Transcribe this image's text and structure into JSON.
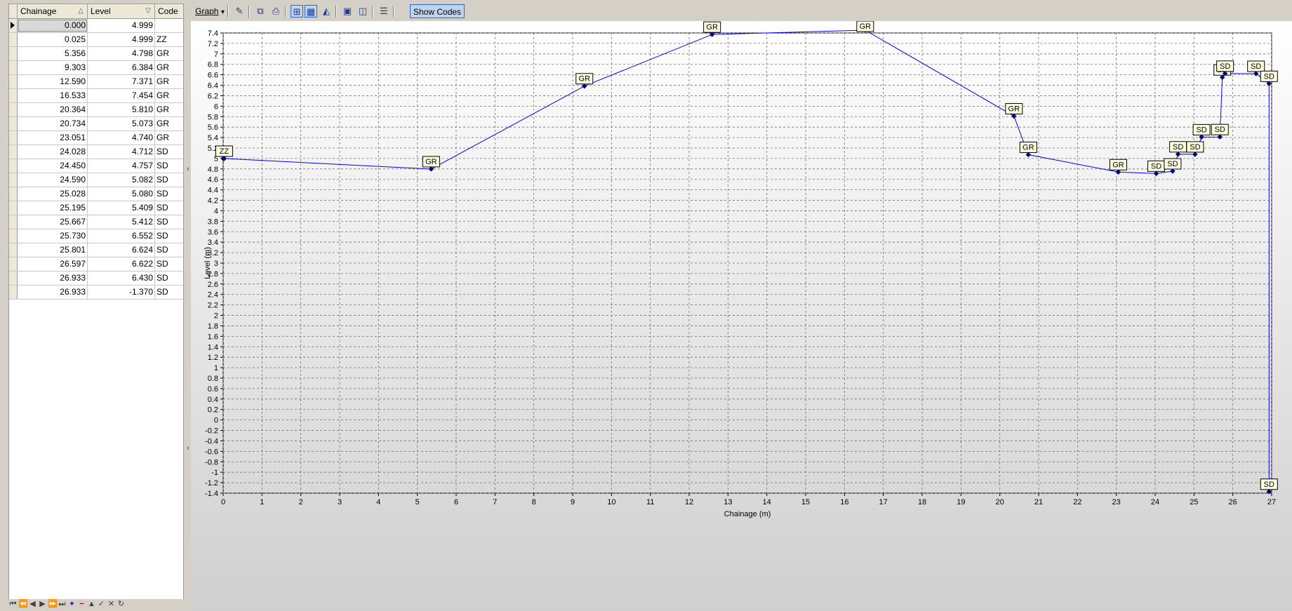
{
  "grid": {
    "columns": [
      {
        "label": "Chainage",
        "sort_icon": "sort-ascending-icon",
        "sort_glyph": "△"
      },
      {
        "label": "Level",
        "sort_icon": "filter-icon",
        "sort_glyph": "▽"
      },
      {
        "label": "Code"
      }
    ],
    "rows": [
      {
        "chainage": "0.000",
        "level": "4.999",
        "code": ""
      },
      {
        "chainage": "0.025",
        "level": "4.999",
        "code": "ZZ"
      },
      {
        "chainage": "5.356",
        "level": "4.798",
        "code": "GR"
      },
      {
        "chainage": "9.303",
        "level": "6.384",
        "code": "GR"
      },
      {
        "chainage": "12.590",
        "level": "7.371",
        "code": "GR"
      },
      {
        "chainage": "16.533",
        "level": "7.454",
        "code": "GR"
      },
      {
        "chainage": "20.364",
        "level": "5.810",
        "code": "GR"
      },
      {
        "chainage": "20.734",
        "level": "5.073",
        "code": "GR"
      },
      {
        "chainage": "23.051",
        "level": "4.740",
        "code": "GR"
      },
      {
        "chainage": "24.028",
        "level": "4.712",
        "code": "SD"
      },
      {
        "chainage": "24.450",
        "level": "4.757",
        "code": "SD"
      },
      {
        "chainage": "24.590",
        "level": "5.082",
        "code": "SD"
      },
      {
        "chainage": "25.028",
        "level": "5.080",
        "code": "SD"
      },
      {
        "chainage": "25.195",
        "level": "5.409",
        "code": "SD"
      },
      {
        "chainage": "25.667",
        "level": "5.412",
        "code": "SD"
      },
      {
        "chainage": "25.730",
        "level": "6.552",
        "code": "SD"
      },
      {
        "chainage": "25.801",
        "level": "6.624",
        "code": "SD"
      },
      {
        "chainage": "26.597",
        "level": "6.622",
        "code": "SD"
      },
      {
        "chainage": "26.933",
        "level": "6.430",
        "code": "SD"
      },
      {
        "chainage": "26.933",
        "level": "-1.370",
        "code": "SD"
      }
    ],
    "navigator": [
      {
        "name": "first-record-icon",
        "glyph": "⏮"
      },
      {
        "name": "prev-page-icon",
        "glyph": "⏪"
      },
      {
        "name": "prev-record-icon",
        "glyph": "◀"
      },
      {
        "name": "next-record-icon",
        "glyph": "▶"
      },
      {
        "name": "next-page-icon",
        "glyph": "⏩"
      },
      {
        "name": "last-record-icon",
        "glyph": "⏭"
      },
      {
        "name": "add-record-icon",
        "glyph": "+"
      },
      {
        "name": "delete-record-icon",
        "glyph": "−"
      },
      {
        "name": "move-up-icon",
        "glyph": "▲"
      },
      {
        "name": "post-icon",
        "glyph": "✓"
      },
      {
        "name": "cancel-icon",
        "glyph": "✕"
      },
      {
        "name": "refresh-icon",
        "glyph": "↻"
      }
    ]
  },
  "toolbar": {
    "graph_menu_label": "Graph",
    "graph_menu_arrow": "▾",
    "show_codes_label": "Show Codes",
    "icons": [
      {
        "name": "edit-pen-icon",
        "glyph": "✎"
      },
      {
        "name": "copy-icon",
        "glyph": "⧉"
      },
      {
        "name": "print-icon",
        "glyph": "⎙"
      },
      {
        "name": "fit-graph-icon",
        "glyph": "⊞",
        "pressed": true
      },
      {
        "name": "grid-icon",
        "glyph": "▦",
        "pressed": true
      },
      {
        "name": "axis-icon",
        "glyph": "◭"
      },
      {
        "name": "save-icon",
        "glyph": "▣"
      },
      {
        "name": "export-icon",
        "glyph": "◫"
      },
      {
        "name": "legend-icon",
        "glyph": "☰"
      }
    ]
  },
  "splitter": {
    "chevron": "‹"
  },
  "chart_data": {
    "type": "scatter",
    "xlabel": "Chainage (m)",
    "ylabel": "Level (m)",
    "xlim": [
      0,
      27
    ],
    "ylim": [
      -1.4,
      7.4
    ],
    "x_ticks": [
      "0",
      "1",
      "2",
      "3",
      "4",
      "5",
      "6",
      "7",
      "8",
      "9",
      "10",
      "11",
      "12",
      "13",
      "14",
      "15",
      "16",
      "17",
      "18",
      "19",
      "20",
      "21",
      "22",
      "23",
      "24",
      "25",
      "26",
      "27"
    ],
    "y_ticks": [
      "-1.4",
      "-1.2",
      "-1",
      "-0.8",
      "-0.6",
      "-0.4",
      "-0.2",
      "0",
      "0.2",
      "0.4",
      "0.6",
      "0.8",
      "1",
      "1.2",
      "1.4",
      "1.6",
      "1.8",
      "2",
      "2.2",
      "2.4",
      "2.6",
      "2.8",
      "3",
      "3.2",
      "3.4",
      "3.6",
      "3.8",
      "4",
      "4.2",
      "4.4",
      "4.6",
      "4.8",
      "5",
      "5.2",
      "5.4",
      "5.6",
      "5.8",
      "6",
      "6.2",
      "6.4",
      "6.6",
      "6.8",
      "7",
      "7.2",
      "7.4"
    ],
    "grid": true,
    "series_color": "#0000ff",
    "label_fill": "#ffffe1",
    "points": [
      {
        "x": 0.0,
        "y": 4.999,
        "code": ""
      },
      {
        "x": 0.025,
        "y": 4.999,
        "code": "ZZ"
      },
      {
        "x": 5.356,
        "y": 4.798,
        "code": "GR"
      },
      {
        "x": 9.303,
        "y": 6.384,
        "code": "GR"
      },
      {
        "x": 12.59,
        "y": 7.371,
        "code": "GR"
      },
      {
        "x": 16.533,
        "y": 7.454,
        "code": "GR"
      },
      {
        "x": 20.364,
        "y": 5.81,
        "code": "GR"
      },
      {
        "x": 20.734,
        "y": 5.073,
        "code": "GR"
      },
      {
        "x": 23.051,
        "y": 4.74,
        "code": "GR"
      },
      {
        "x": 24.028,
        "y": 4.712,
        "code": "SD"
      },
      {
        "x": 24.45,
        "y": 4.757,
        "code": "SD"
      },
      {
        "x": 24.59,
        "y": 5.082,
        "code": "SD"
      },
      {
        "x": 25.028,
        "y": 5.08,
        "code": "SD"
      },
      {
        "x": 25.195,
        "y": 5.409,
        "code": "SD"
      },
      {
        "x": 25.667,
        "y": 5.412,
        "code": "SD"
      },
      {
        "x": 25.73,
        "y": 6.552,
        "code": "SD"
      },
      {
        "x": 25.801,
        "y": 6.624,
        "code": "SD"
      },
      {
        "x": 26.597,
        "y": 6.622,
        "code": "SD"
      },
      {
        "x": 26.933,
        "y": 6.43,
        "code": "SD"
      },
      {
        "x": 26.933,
        "y": -1.37,
        "code": "SD"
      }
    ]
  }
}
